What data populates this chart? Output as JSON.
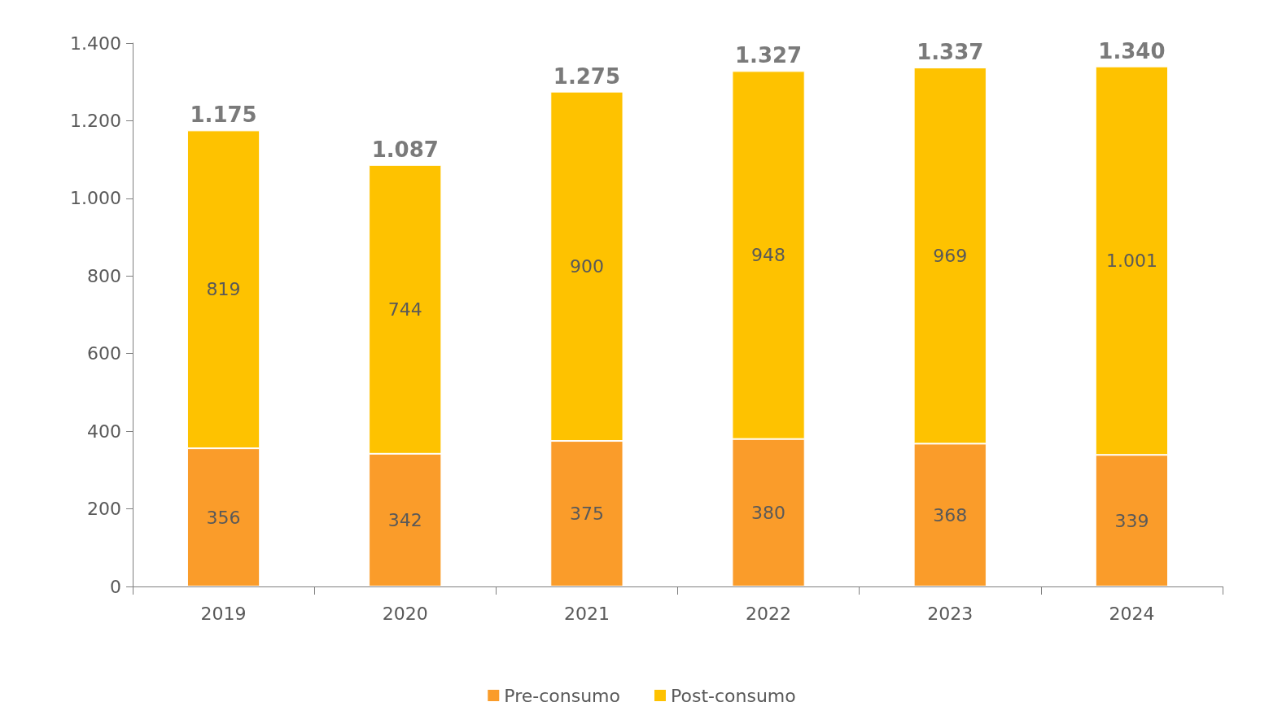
{
  "chart_data": {
    "type": "bar",
    "stacked": true,
    "categories": [
      "2019",
      "2020",
      "2021",
      "2022",
      "2023",
      "2024"
    ],
    "series": [
      {
        "name": "Pre-consumo",
        "color": "#fa9c2a",
        "values": [
          356,
          342,
          375,
          380,
          368,
          339
        ],
        "value_labels": [
          "356",
          "342",
          "375",
          "380",
          "368",
          "339"
        ]
      },
      {
        "name": "Post-consumo",
        "color": "#fec200",
        "values": [
          819,
          744,
          900,
          948,
          969,
          1001
        ],
        "value_labels": [
          "819",
          "744",
          "900",
          "948",
          "969",
          "1.001"
        ]
      }
    ],
    "totals": [
      "1.175",
      "1.087",
      "1.275",
      "1.327",
      "1.337",
      "1.340"
    ],
    "ylim": [
      0,
      1400
    ],
    "yticks": [
      0,
      200,
      400,
      600,
      800,
      {
        "value": 1000,
        "label": "1.000"
      },
      {
        "value": 1200,
        "label": "1.200"
      },
      {
        "value": 1400,
        "label": "1.400"
      }
    ],
    "grid": false,
    "legend": "bottom"
  }
}
